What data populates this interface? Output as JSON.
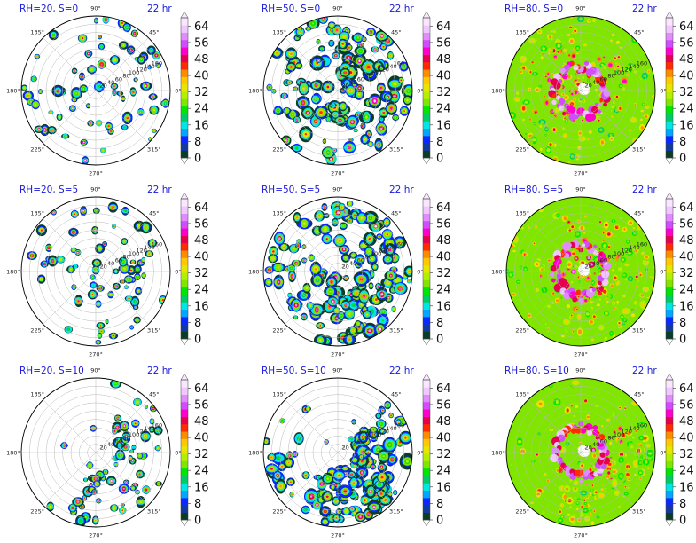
{
  "panels": [
    {
      "title": "RH=20, S=0",
      "time": "22 hr",
      "rh": 20,
      "s": 0
    },
    {
      "title": "RH=50, S=0",
      "time": "22 hr",
      "rh": 50,
      "s": 0
    },
    {
      "title": "RH=80, S=0",
      "time": "22 hr",
      "rh": 80,
      "s": 0
    },
    {
      "title": "RH=20, S=5",
      "time": "22 hr",
      "rh": 20,
      "s": 5
    },
    {
      "title": "RH=50, S=5",
      "time": "22 hr",
      "rh": 50,
      "s": 5
    },
    {
      "title": "RH=80, S=5",
      "time": "22 hr",
      "rh": 80,
      "s": 5
    },
    {
      "title": "RH=20, S=10",
      "time": "22 hr",
      "rh": 20,
      "s": 10
    },
    {
      "title": "RH=50, S=10",
      "time": "22 hr",
      "rh": 50,
      "s": 10
    },
    {
      "title": "RH=80, S=10",
      "time": "22 hr",
      "rh": 80,
      "s": 10
    }
  ],
  "chart_data": {
    "type": "heatmap",
    "projection": "polar",
    "angle_ticks": [
      "90°",
      "45°",
      "0°",
      "315°",
      "270°",
      "225°",
      "180°",
      "135°"
    ],
    "angle_tick_values": [
      90,
      45,
      0,
      315,
      270,
      225,
      180,
      135
    ],
    "radial_ticks": [
      "20",
      "40",
      "60",
      "80",
      "100",
      "120",
      "140",
      "160"
    ],
    "radial_tick_values": [
      20,
      40,
      60,
      80,
      100,
      120,
      140,
      160
    ],
    "rlim": [
      0,
      180
    ],
    "colorbar": {
      "ticks": [
        "64",
        "56",
        "48",
        "40",
        "32",
        "24",
        "16",
        "8",
        "0"
      ],
      "tick_values": [
        64,
        56,
        48,
        40,
        32,
        24,
        16,
        8,
        0
      ],
      "range": [
        0,
        68
      ],
      "extend": "both",
      "colors": [
        "#0a3d24",
        "#123a9e",
        "#0a28ff",
        "#00a6ff",
        "#00e6e6",
        "#00cc66",
        "#00e600",
        "#80e600",
        "#b3f000",
        "#e6e600",
        "#ffc800",
        "#ff8c00",
        "#ff2a00",
        "#e6004d",
        "#ff00cc",
        "#d24bff",
        "#e08cff",
        "#f0c8ff",
        "#fae6ff"
      ]
    },
    "grid": true
  }
}
